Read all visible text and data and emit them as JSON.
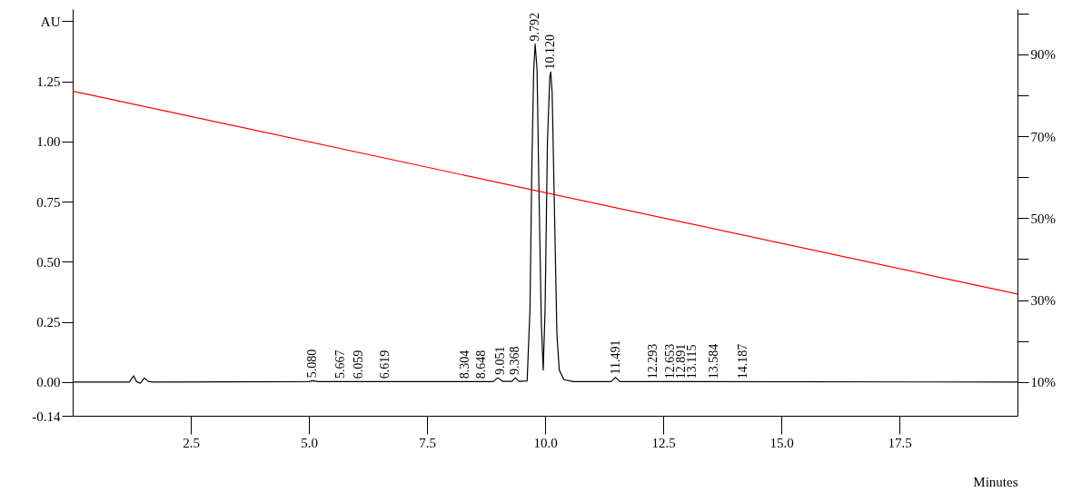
{
  "chart_data": {
    "type": "line",
    "xlabel": "Minutes",
    "xlim": [
      0,
      20
    ],
    "xticks": [
      2.5,
      {
        "value": 5,
        "label": "5.0"
      },
      7.5,
      {
        "value": 10,
        "label": "10.0"
      },
      12.5,
      {
        "value": 15,
        "label": "15.0"
      },
      17.5
    ],
    "ylim": [
      -0.14,
      1.55
    ],
    "yticks": [
      -0.14,
      {
        "value": 0,
        "label": "0.00"
      },
      0.25,
      {
        "value": 0.5,
        "label": "0.50"
      },
      0.75,
      {
        "value": 1,
        "label": "1.00"
      },
      1.25,
      {
        "value": 1.5,
        "label": "AU"
      }
    ],
    "y2lim": [
      1.8,
      101
    ],
    "y2ticks": [
      {
        "value": 10,
        "label": "10%"
      },
      {
        "value": 20,
        "label": null
      },
      {
        "value": 30,
        "label": "30%"
      },
      {
        "value": 40,
        "label": null
      },
      {
        "value": 50,
        "label": "50%"
      },
      {
        "value": 60,
        "label": null
      },
      {
        "value": 70,
        "label": "70%"
      },
      {
        "value": 80,
        "label": null
      },
      {
        "value": 90,
        "label": "90%"
      },
      {
        "value": 100,
        "label": null
      }
    ],
    "grid": false,
    "series": [
      {
        "color": "#000000",
        "x": [
          0,
          1.2,
          1.29,
          1.35,
          1.43,
          1.52,
          1.6,
          1.7,
          5.0,
          5.08,
          5.2,
          8.9,
          9.0,
          9.1,
          9.3,
          9.37,
          9.45,
          9.62,
          9.68,
          9.72,
          9.76,
          9.79,
          9.83,
          9.87,
          9.92,
          9.96,
          10.0,
          10.05,
          10.1,
          10.12,
          10.15,
          10.2,
          10.25,
          10.3,
          10.4,
          10.6,
          11.4,
          11.49,
          11.58,
          20
        ],
        "values": [
          0,
          0,
          0.026,
          0.002,
          -0.005,
          0.017,
          0.003,
          0,
          0.002,
          0.006,
          0.002,
          0.002,
          0.018,
          0.003,
          0.003,
          0.018,
          0.003,
          0.005,
          0.3,
          0.9,
          1.3,
          1.405,
          1.3,
          0.8,
          0.25,
          0.05,
          0.3,
          1.0,
          1.27,
          1.288,
          1.2,
          0.7,
          0.2,
          0.05,
          0.01,
          0.002,
          0.002,
          0.02,
          0.002,
          0
        ]
      },
      {
        "color": "#ff0000",
        "axis": "y2",
        "x": [
          0,
          20
        ],
        "values": [
          81,
          31.5
        ]
      }
    ],
    "annotations": [
      {
        "text": "5.080",
        "x": 5.08,
        "y": 0.006
      },
      {
        "text": "5.667",
        "x": 5.667,
        "y": 0.003
      },
      {
        "text": "6.059",
        "x": 6.059,
        "y": 0.002
      },
      {
        "text": "6.619",
        "x": 6.619,
        "y": 0.002
      },
      {
        "text": "8.304",
        "x": 8.304,
        "y": 0.002
      },
      {
        "text": "8.648",
        "x": 8.648,
        "y": 0.002
      },
      {
        "text": "9.051",
        "x": 9.051,
        "y": 0.018
      },
      {
        "text": "9.368",
        "x": 9.368,
        "y": 0.018
      },
      {
        "text": "9.792",
        "x": 9.792,
        "y": 1.405
      },
      {
        "text": "10.120",
        "x": 10.12,
        "y": 1.288
      },
      {
        "text": "11.491",
        "x": 11.491,
        "y": 0.02
      },
      {
        "text": "12.293",
        "x": 12.293,
        "y": 0.002
      },
      {
        "text": "12.653",
        "x": 12.653,
        "y": 0.002
      },
      {
        "text": "12.891",
        "x": 12.891,
        "y": 0.002
      },
      {
        "text": "13.115",
        "x": 13.115,
        "y": 0.002
      },
      {
        "text": "13.584",
        "x": 13.584,
        "y": 0.002
      },
      {
        "text": "14.187",
        "x": 14.187,
        "y": 0.002
      }
    ]
  }
}
